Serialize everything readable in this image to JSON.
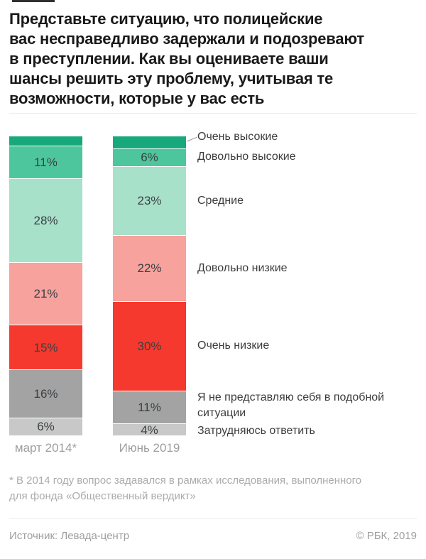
{
  "header": {
    "title_lines": [
      "Представьте ситуацию, что полицейские",
      "вас несправедливо задержали и подозревают",
      "в преступлении. Как вы оцениваете ваши",
      "шансы решить эту проблему, учитывая те",
      "возможности, которые у вас есть"
    ]
  },
  "chart_data": {
    "type": "bar",
    "variant": "stacked-column",
    "unit": "%",
    "ylim": [
      0,
      100
    ],
    "legend_position": "right",
    "categories": [
      "Очень высокие",
      "Довольно высокие",
      "Средние",
      "Довольно низкие",
      "Очень низкие",
      "Я не представляю себя в подобной ситуации",
      "Затрудняюсь ответить"
    ],
    "category_colors": [
      "#17a87b",
      "#4ec69d",
      "#a8e1ca",
      "#f7a29d",
      "#f5392e",
      "#a3a3a3",
      "#c8c8c8"
    ],
    "series": [
      {
        "name": "март 2014*",
        "values": [
          3,
          11,
          28,
          21,
          15,
          16,
          6
        ],
        "value_labels": [
          "",
          "11%",
          "28%",
          "21%",
          "15%",
          "16%",
          "6%"
        ]
      },
      {
        "name": "Июнь 2019",
        "values": [
          4,
          6,
          23,
          22,
          30,
          11,
          4
        ],
        "value_labels": [
          "",
          "6%",
          "23%",
          "22%",
          "30%",
          "11%",
          "4%"
        ]
      }
    ]
  },
  "footnote_lines": [
    "* В 2014 году вопрос задавался в рамках исследования, выполненного",
    "для фонда «Общественный вердикт»"
  ],
  "footer": {
    "source": "Источник: Левада-центр",
    "copyright": "© РБК, 2019"
  }
}
